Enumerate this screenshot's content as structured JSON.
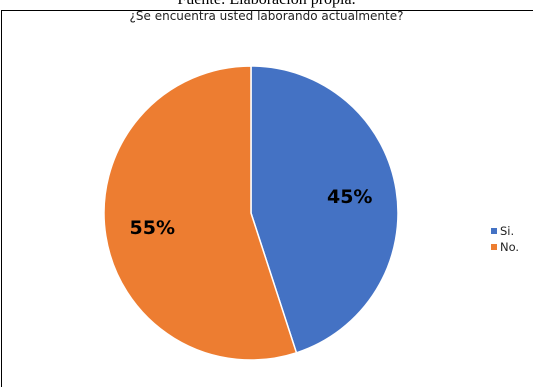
{
  "header": {
    "caption": "Fuente: Elaboración propia."
  },
  "chart_data": {
    "type": "pie",
    "title": "¿Se encuentra usted laborando actualmente?",
    "categories": [
      "Si.",
      "No."
    ],
    "values": [
      45,
      55
    ],
    "data_labels": [
      "45%",
      "55%"
    ],
    "colors": [
      "#4472C4",
      "#ED7D31"
    ],
    "legend_position": "right"
  }
}
